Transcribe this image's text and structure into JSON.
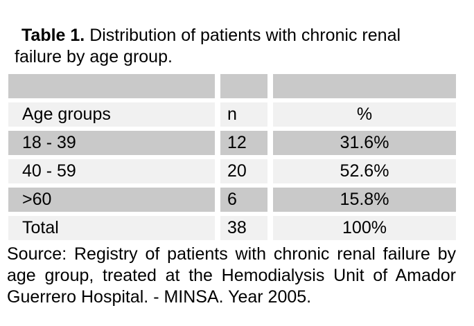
{
  "title": {
    "label": "Table 1.",
    "text": " Distribution of patients with chronic renal failure by age group."
  },
  "table": {
    "rows": [
      {
        "shade": "dark",
        "cells": [
          "",
          "",
          ""
        ]
      },
      {
        "shade": "light",
        "cells": [
          "Age groups",
          "n",
          "%"
        ]
      },
      {
        "shade": "dark",
        "cells": [
          "18 - 39",
          "12",
          "31.6%"
        ]
      },
      {
        "shade": "light",
        "cells": [
          "40 - 59",
          "20",
          "52.6%"
        ]
      },
      {
        "shade": "dark",
        "cells": [
          ">60",
          "6",
          "15.8%"
        ]
      },
      {
        "shade": "light",
        "cells": [
          "Total",
          "38",
          "100%"
        ]
      }
    ]
  },
  "source_note": "Source: Registry of patients with chronic renal failure by age group, treated at the Hemodialysis Unit of Amador Guerrero Hospital. - MINSA. Year 2005.",
  "colors": {
    "band_dark": "#c9c9c9",
    "band_light": "#f1f1f1",
    "text": "#000000",
    "background": "#ffffff"
  }
}
